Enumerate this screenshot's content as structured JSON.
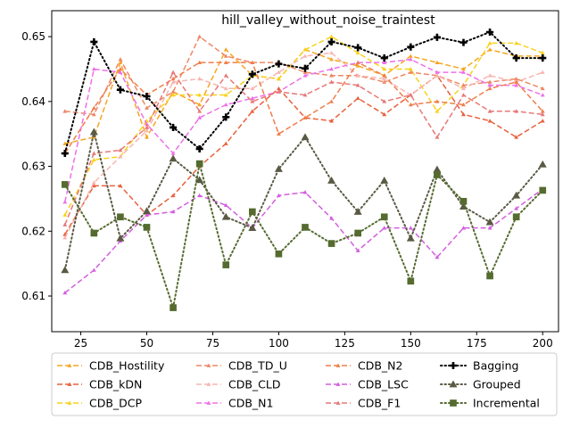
{
  "chart_data": {
    "type": "line",
    "title": "hill_valley_without_noise_traintest",
    "xlabel": "",
    "ylabel": "",
    "xlim": [
      14,
      206
    ],
    "ylim": [
      0.6045,
      0.654
    ],
    "xticks": [
      25,
      50,
      75,
      100,
      125,
      150,
      175,
      200
    ],
    "xtick_labels": [
      "25",
      "50",
      "75",
      "100",
      "125",
      "150",
      "175",
      "200"
    ],
    "yticks": [
      0.61,
      0.62,
      0.63,
      0.64,
      0.65
    ],
    "ytick_labels": [
      "0.61",
      "0.62",
      "0.63",
      "0.64",
      "0.65"
    ],
    "grid": false,
    "legend_position": "bottom",
    "legend_columns": 4,
    "x": [
      19,
      30,
      40,
      50,
      60,
      70,
      80,
      90,
      100,
      110,
      120,
      130,
      140,
      150,
      160,
      170,
      180,
      190,
      200
    ],
    "series": [
      {
        "name": "CDB_Hostility",
        "color": "#f5a623",
        "style": "dashed",
        "marker": "triangle",
        "values": [
          0.6335,
          0.6345,
          0.646,
          0.6345,
          0.6415,
          0.6395,
          0.648,
          0.644,
          0.6435,
          0.648,
          0.6465,
          0.6455,
          0.644,
          0.647,
          0.646,
          0.645,
          0.648,
          0.647,
          0.647
        ]
      },
      {
        "name": "CDB_kDN",
        "color": "#e8603c",
        "style": "dashed",
        "marker": "triangle",
        "values": [
          0.6195,
          0.627,
          0.627,
          0.6225,
          0.6255,
          0.63,
          0.6335,
          0.6385,
          0.642,
          0.6375,
          0.637,
          0.6405,
          0.638,
          0.641,
          0.644,
          0.638,
          0.637,
          0.6345,
          0.637
        ]
      },
      {
        "name": "CDB_DCP",
        "color": "#f8d21c",
        "style": "dashed",
        "marker": "triangle",
        "values": [
          0.6225,
          0.631,
          0.6315,
          0.637,
          0.641,
          0.641,
          0.641,
          0.644,
          0.6435,
          0.648,
          0.65,
          0.6475,
          0.645,
          0.645,
          0.6385,
          0.6425,
          0.649,
          0.649,
          0.6475
        ]
      },
      {
        "name": "CDB_TD_U",
        "color": "#ee8866",
        "style": "dashed",
        "marker": "triangle",
        "values": [
          0.6385,
          0.638,
          0.6465,
          0.639,
          0.6415,
          0.65,
          0.647,
          0.646,
          0.646,
          0.6445,
          0.644,
          0.644,
          0.643,
          0.6445,
          0.644,
          0.6425,
          0.643,
          0.6435,
          0.642
        ]
      },
      {
        "name": "CDB_CLD",
        "color": "#f7b6b2",
        "style": "dashed",
        "marker": "triangle",
        "values": [
          0.619,
          0.6275,
          0.6315,
          0.6355,
          0.643,
          0.6435,
          0.642,
          0.642,
          0.6445,
          0.647,
          0.6475,
          0.644,
          0.6435,
          0.641,
          0.644,
          0.642,
          0.644,
          0.643,
          0.6445
        ]
      },
      {
        "name": "CDB_N1",
        "color": "#ee70e8",
        "style": "dashed",
        "marker": "triangle",
        "values": [
          0.6245,
          0.645,
          0.6445,
          0.6365,
          0.632,
          0.6375,
          0.6395,
          0.6405,
          0.6415,
          0.644,
          0.645,
          0.646,
          0.646,
          0.6465,
          0.6445,
          0.6445,
          0.6425,
          0.6425,
          0.641
        ]
      },
      {
        "name": "CDB_N2",
        "color": "#f07e4a",
        "style": "dashed",
        "marker": "triangle",
        "values": [
          0.632,
          0.639,
          0.645,
          0.641,
          0.6435,
          0.646,
          0.646,
          0.646,
          0.635,
          0.6375,
          0.64,
          0.646,
          0.644,
          0.6395,
          0.64,
          0.6395,
          0.642,
          0.643,
          0.6385
        ]
      },
      {
        "name": "CDB_LSC",
        "color": "#d45ee0",
        "style": "dashed",
        "marker": "triangle",
        "values": [
          0.6105,
          0.614,
          0.6185,
          0.6225,
          0.623,
          0.6255,
          0.624,
          0.6205,
          0.6255,
          0.626,
          0.622,
          0.617,
          0.6205,
          0.6205,
          0.616,
          0.6205,
          0.6205,
          0.6235,
          0.6265
        ]
      },
      {
        "name": "CDB_F1",
        "color": "#e87878",
        "style": "dashed",
        "marker": "triangle",
        "values": [
          0.621,
          0.632,
          0.6325,
          0.636,
          0.6445,
          0.6385,
          0.644,
          0.64,
          0.6415,
          0.641,
          0.643,
          0.6425,
          0.64,
          0.641,
          0.6345,
          0.641,
          0.6385,
          0.6385,
          0.638
        ]
      },
      {
        "name": "Bagging",
        "color": "#000000",
        "style": "dotted",
        "marker": "plus",
        "values": [
          0.632,
          0.6492,
          0.6418,
          0.6408,
          0.636,
          0.6327,
          0.6376,
          0.6442,
          0.6458,
          0.6451,
          0.6492,
          0.6483,
          0.6467,
          0.6484,
          0.6499,
          0.6491,
          0.6507,
          0.6467,
          0.6467
        ]
      },
      {
        "name": "Grouped",
        "color": "#5a5a44",
        "style": "dotted",
        "marker": "triangle-solid",
        "values": [
          0.614,
          0.6353,
          0.6189,
          0.6231,
          0.6312,
          0.6279,
          0.6222,
          0.6205,
          0.6296,
          0.6345,
          0.6278,
          0.623,
          0.6278,
          0.6189,
          0.6295,
          0.6238,
          0.6214,
          0.6255,
          0.6303
        ]
      },
      {
        "name": "Incremental",
        "color": "#556b2f",
        "style": "dotted",
        "marker": "square",
        "values": [
          0.6272,
          0.6197,
          0.6222,
          0.6206,
          0.6082,
          0.6304,
          0.6148,
          0.623,
          0.6165,
          0.6206,
          0.6181,
          0.6197,
          0.6222,
          0.6123,
          0.6287,
          0.6246,
          0.6131,
          0.6222,
          0.6263
        ]
      }
    ]
  }
}
